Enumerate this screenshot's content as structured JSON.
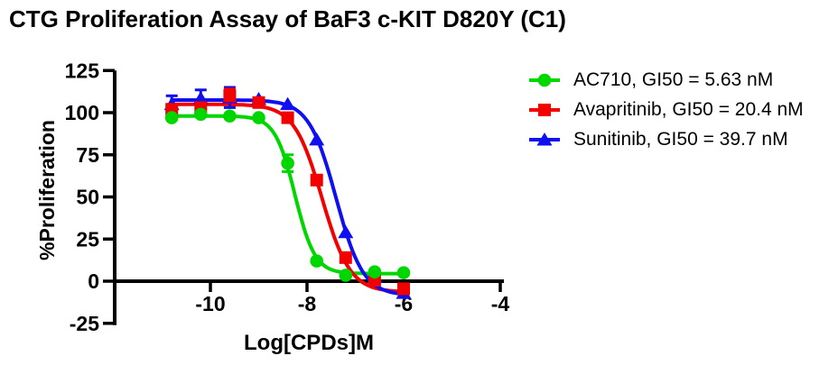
{
  "chart_data": {
    "type": "line",
    "title": "CTG Proliferation Assay of BaF3 c-KIT D820Y (C1)",
    "xlabel": "Log[CPDs]M",
    "ylabel": "%Proliferation",
    "x_ticks": [
      -10,
      -8,
      -6,
      -4
    ],
    "y_ticks": [
      125,
      100,
      75,
      50,
      25,
      0,
      -25
    ],
    "ylim": [
      -25,
      125
    ],
    "grid": false,
    "legend_position": "right",
    "x": [
      -10.8,
      -10.2,
      -9.6,
      -9.0,
      -8.4,
      -7.8,
      -7.2,
      -6.6,
      -6.0
    ],
    "series": [
      {
        "name": "AC710",
        "legend": "AC710, GI50 = 5.63 nM",
        "color": "#00d600",
        "marker": "circle",
        "values": [
          97,
          99,
          98,
          97,
          70,
          12,
          3.5,
          5.5,
          5
        ],
        "error": [
          0,
          0,
          0,
          0,
          5,
          0,
          0,
          0,
          0
        ],
        "fit": {
          "top": 98,
          "bottom": 4.5,
          "log_gi50": -8.25,
          "hill": 2.1
        }
      },
      {
        "name": "Avapritinib",
        "legend": "Avapritinib, GI50 = 20.4 nM",
        "color": "#f20000",
        "marker": "square",
        "values": [
          102,
          103,
          110,
          106,
          97,
          60,
          14,
          0.5,
          -4.5
        ],
        "error": [
          0,
          0,
          4,
          0,
          0,
          0,
          0,
          0,
          0
        ],
        "fit": {
          "top": 105,
          "bottom": -6.5,
          "log_gi50": -7.69,
          "hill": 1.5
        }
      },
      {
        "name": "Sunitinib",
        "legend": "Sunitinib, GI50 = 39.7 nM",
        "color": "#0f0ff0",
        "marker": "triangle",
        "values": [
          105,
          108.5,
          109,
          108,
          105,
          84,
          29,
          2.5,
          -7
        ],
        "error": [
          5,
          5,
          6,
          0,
          0,
          0,
          0,
          0,
          0
        ],
        "fit": {
          "top": 107.5,
          "bottom": -8.5,
          "log_gi50": -7.4,
          "hill": 1.55
        }
      }
    ]
  }
}
